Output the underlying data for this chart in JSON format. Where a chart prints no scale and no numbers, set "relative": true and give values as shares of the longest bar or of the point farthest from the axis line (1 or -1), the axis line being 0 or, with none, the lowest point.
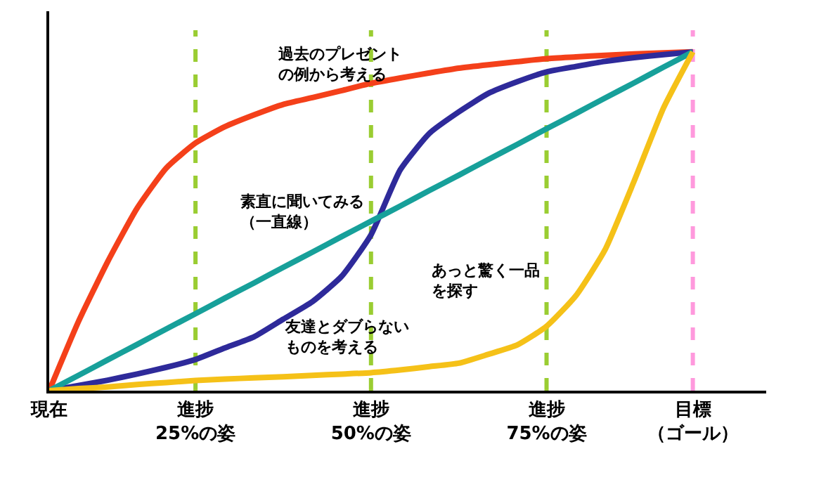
{
  "chart_data": {
    "type": "line",
    "relative": true,
    "grid": false,
    "marker": "none",
    "line_style": "solid",
    "categories": [
      "現在",
      null,
      null,
      null,
      null,
      "進捗25%の姿",
      null,
      null,
      null,
      null,
      null,
      "進捗50%の姿",
      null,
      null,
      null,
      null,
      null,
      "進捗75%の姿",
      null,
      null,
      null,
      null,
      "目標（ゴール）"
    ],
    "series": [
      {
        "color": "#f4401a",
        "values": [
          0,
          0.204,
          0.381,
          0.538,
          0.657,
          0.731,
          0.779,
          0.814,
          0.845,
          0.865,
          0.886,
          0.907,
          0.923,
          0.938,
          0.952,
          0.962,
          0.971,
          0.98,
          0.985,
          0.99,
          0.994,
          0.997,
          1
        ]
      },
      {
        "color": "#2e2a9a",
        "values": [
          0,
          0.015,
          0.031,
          0.049,
          0.069,
          0.092,
          0.126,
          0.159,
          0.211,
          0.263,
          0.338,
          0.46,
          0.652,
          0.76,
          0.823,
          0.877,
          0.912,
          0.941,
          0.957,
          0.972,
          0.983,
          0.992,
          1
        ]
      },
      {
        "color": "#17a09a",
        "values": [
          0,
          0.045,
          0.091,
          0.136,
          0.182,
          0.227,
          0.273,
          0.318,
          0.364,
          0.409,
          0.455,
          0.5,
          0.545,
          0.591,
          0.636,
          0.682,
          0.727,
          0.773,
          0.818,
          0.864,
          0.909,
          0.955,
          1
        ]
      },
      {
        "color": "#f5c118",
        "values": [
          0,
          0.006,
          0.011,
          0.018,
          0.024,
          0.03,
          0.034,
          0.038,
          0.041,
          0.045,
          0.049,
          0.053,
          0.061,
          0.071,
          0.081,
          0.107,
          0.135,
          0.19,
          0.28,
          0.416,
          0.62,
          0.835,
          1
        ]
      }
    ],
    "ref_lines": [
      {
        "axis": "x",
        "value": "進捗25%の姿",
        "color": "#9acd32",
        "line_style": "dashed"
      },
      {
        "axis": "x",
        "value": "進捗50%の姿",
        "color": "#9acd32",
        "line_style": "dashed"
      },
      {
        "axis": "x",
        "value": "進捗75%の姿",
        "color": "#9acd32",
        "line_style": "dashed"
      },
      {
        "axis": "x",
        "value": "目標（ゴール）",
        "color": "#ff99dd",
        "line_style": "dashed"
      }
    ],
    "annotations": [
      "過去のプレゼントの例から考える",
      "素直に聞いてみる（一直線）",
      "友達とダブらないものを考える",
      "あっと驚く一品を探す"
    ]
  }
}
